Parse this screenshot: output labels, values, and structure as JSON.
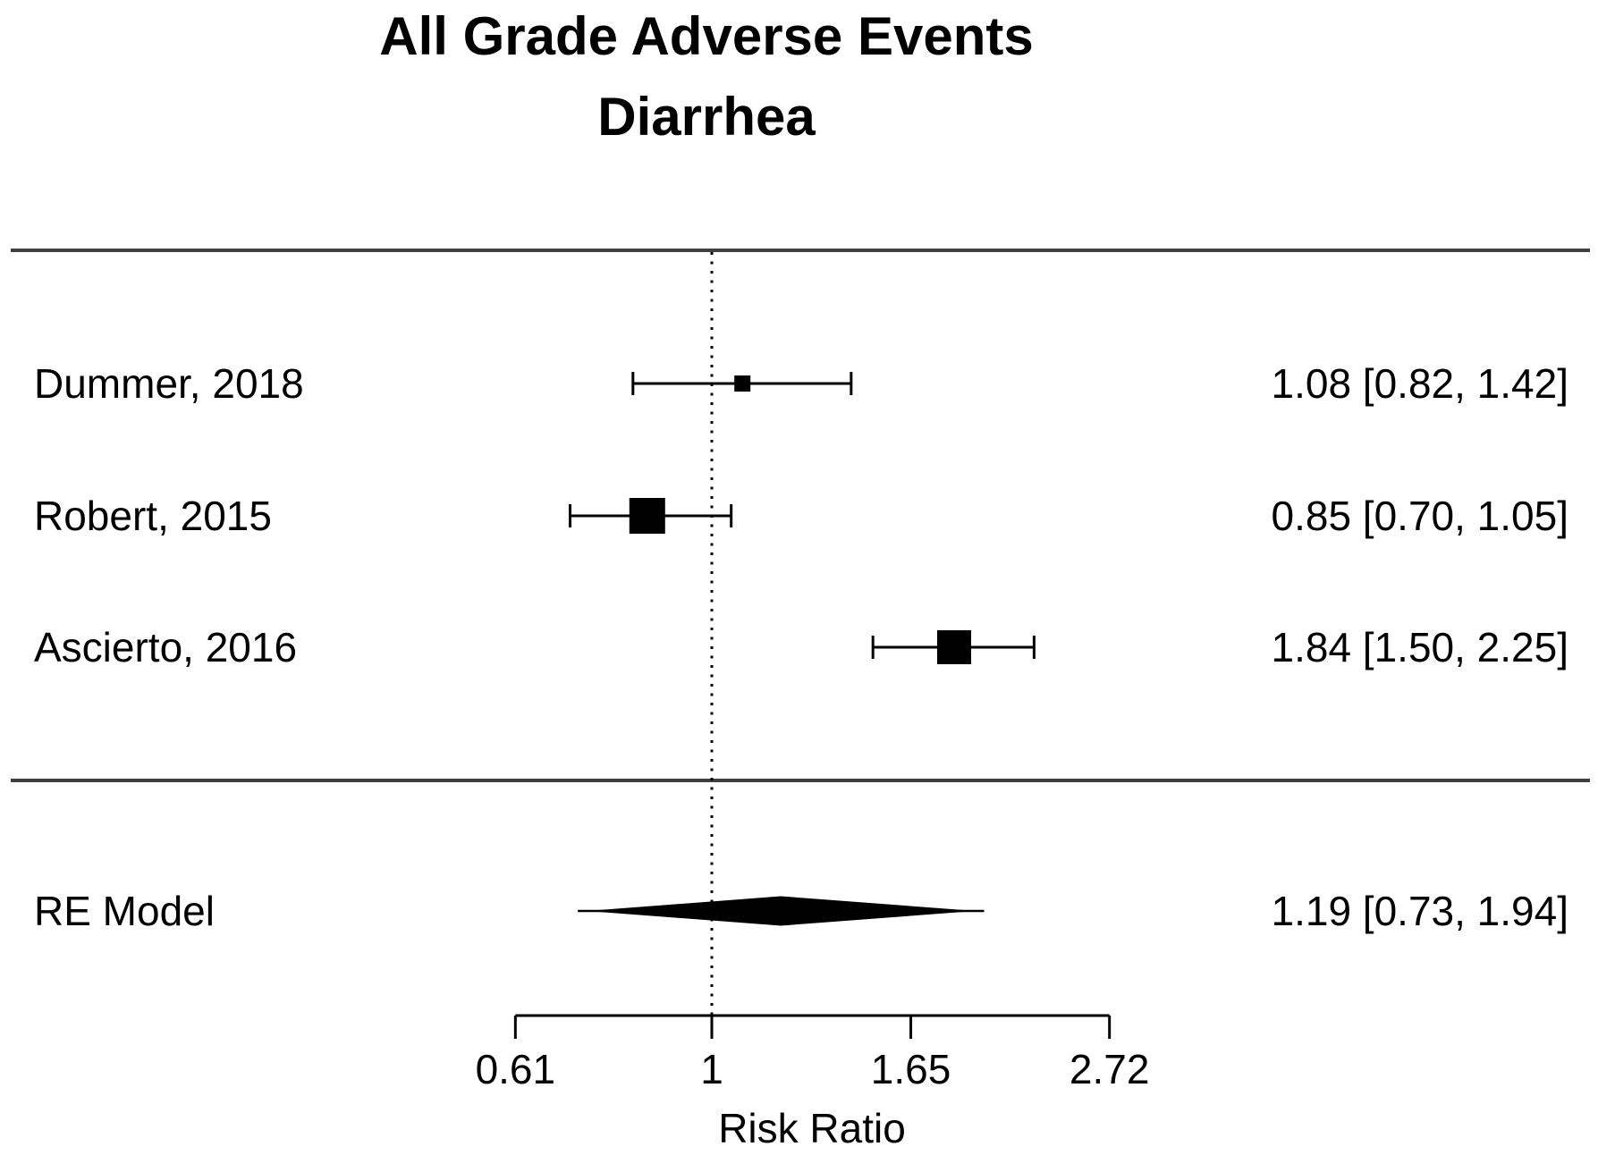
{
  "title": {
    "line1": "All Grade Adverse Events",
    "line2": "Diarrhea"
  },
  "chart_data": {
    "type": "forest",
    "title": "All Grade Adverse Events — Diarrhea",
    "xlabel": "Risk Ratio",
    "x_scale": "log",
    "x_ticks": [
      0.61,
      1,
      1.65,
      2.72
    ],
    "x_range": [
      0.61,
      2.72
    ],
    "reference_line": 1,
    "effect_measure": "Risk Ratio",
    "studies": [
      {
        "label": "Dummer, 2018",
        "estimate": 1.08,
        "ci_lower": 0.82,
        "ci_upper": 1.42,
        "annotation": "1.08 [0.82, 1.42]"
      },
      {
        "label": "Robert, 2015",
        "estimate": 0.85,
        "ci_lower": 0.7,
        "ci_upper": 1.05,
        "annotation": "0.85 [0.70, 1.05]"
      },
      {
        "label": "Ascierto, 2016",
        "estimate": 1.84,
        "ci_lower": 1.5,
        "ci_upper": 2.25,
        "annotation": "1.84 [1.50, 2.25]"
      }
    ],
    "summary": {
      "label": "RE Model",
      "estimate": 1.19,
      "ci_lower": 0.73,
      "ci_upper": 1.94,
      "annotation": "1.19 [0.73, 1.94]"
    }
  },
  "colors": {
    "foreground": "#000000",
    "rule": "#404040",
    "background": "#ffffff"
  }
}
